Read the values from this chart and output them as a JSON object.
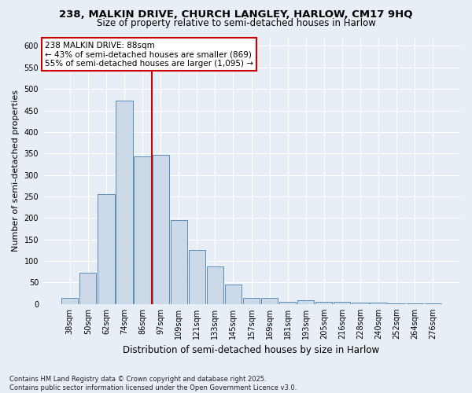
{
  "title_line1": "238, MALKIN DRIVE, CHURCH LANGLEY, HARLOW, CM17 9HQ",
  "title_line2": "Size of property relative to semi-detached houses in Harlow",
  "xlabel": "Distribution of semi-detached houses by size in Harlow",
  "ylabel": "Number of semi-detached properties",
  "categories": [
    "38sqm",
    "50sqm",
    "62sqm",
    "74sqm",
    "86sqm",
    "97sqm",
    "109sqm",
    "121sqm",
    "133sqm",
    "145sqm",
    "157sqm",
    "169sqm",
    "181sqm",
    "193sqm",
    "205sqm",
    "216sqm",
    "228sqm",
    "240sqm",
    "252sqm",
    "264sqm",
    "276sqm"
  ],
  "bar_heights": [
    15,
    73,
    255,
    473,
    343,
    347,
    196,
    125,
    88,
    46,
    15,
    15,
    6,
    9,
    5,
    5,
    3,
    3,
    2,
    1,
    2
  ],
  "bar_color": "#ccd9e8",
  "bar_edge_color": "#5b8db8",
  "vline_pos": 4.5,
  "vline_color": "#cc0000",
  "annotation_title": "238 MALKIN DRIVE: 88sqm",
  "annotation_line1": "← 43% of semi-detached houses are smaller (869)",
  "annotation_line2": "55% of semi-detached houses are larger (1,095) →",
  "annotation_box_color": "#ffffff",
  "annotation_box_edge": "#cc0000",
  "ylim": [
    0,
    620
  ],
  "yticks": [
    0,
    50,
    100,
    150,
    200,
    250,
    300,
    350,
    400,
    450,
    500,
    550,
    600
  ],
  "footer_line1": "Contains HM Land Registry data © Crown copyright and database right 2025.",
  "footer_line2": "Contains public sector information licensed under the Open Government Licence v3.0.",
  "bg_color": "#e8eef5",
  "plot_bg_color": "#e8eef5",
  "grid_color": "#ffffff",
  "title1_fontsize": 9.5,
  "title2_fontsize": 8.5,
  "ylabel_fontsize": 8,
  "xlabel_fontsize": 8.5,
  "tick_fontsize": 7,
  "annot_fontsize": 7.5,
  "footer_fontsize": 6
}
